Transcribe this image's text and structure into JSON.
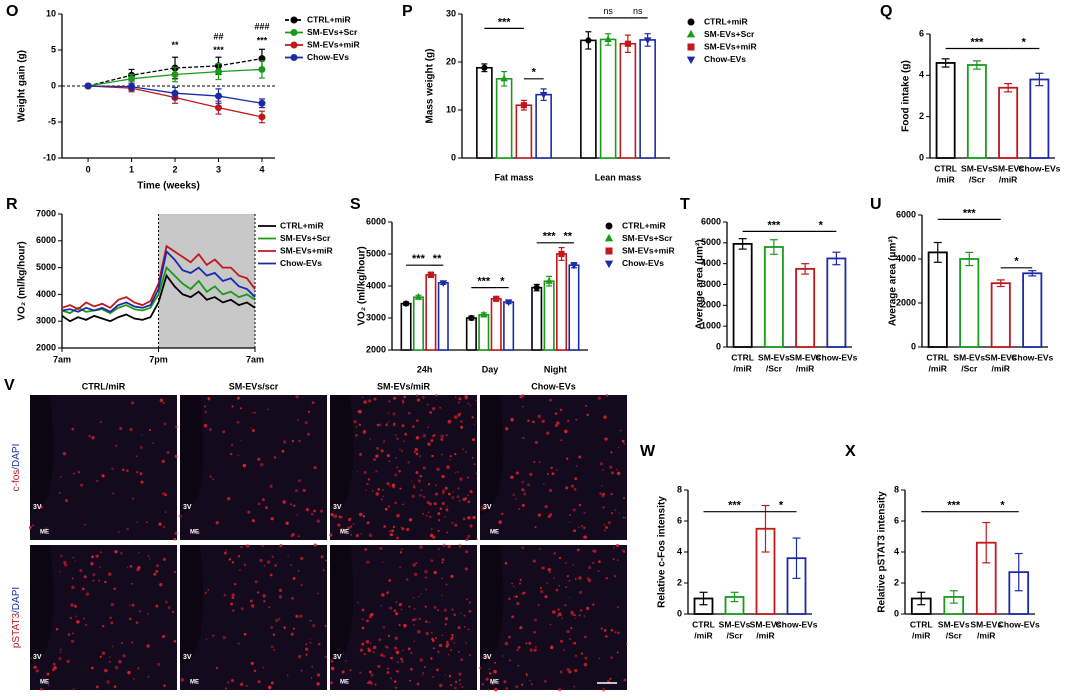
{
  "chart_data": [
    {
      "panel": "O",
      "type": "line",
      "x_label": "Time (weeks)",
      "y_label": "Weight gain (g)",
      "x": [
        0,
        1,
        2,
        3,
        4
      ],
      "xlim": [
        -0.6,
        4.3
      ],
      "xticks": [
        0,
        1,
        2,
        3,
        4
      ],
      "ylim": [
        -10,
        10
      ],
      "yticks": [
        -10,
        -5,
        0,
        5,
        10
      ],
      "zero_line": true,
      "series": [
        {
          "name": "CTRL+miR",
          "color": "#000000",
          "marker": "circle",
          "dashed": true,
          "values": [
            0,
            1.5,
            2.5,
            2.8,
            3.8
          ],
          "errors": [
            0,
            0.8,
            1.5,
            1.2,
            1.3
          ]
        },
        {
          "name": "SM-EVs+Scr",
          "color": "#1a9a1a",
          "marker": "circle",
          "values": [
            0,
            1.0,
            1.6,
            2.0,
            2.3
          ],
          "errors": [
            0,
            0.6,
            1.0,
            1.1,
            1.2
          ]
        },
        {
          "name": "SM-EVs+miR",
          "color": "#c0181c",
          "marker": "circle",
          "values": [
            0,
            -0.3,
            -1.6,
            -3.0,
            -4.3
          ],
          "errors": [
            0,
            0.5,
            0.8,
            0.9,
            0.8
          ]
        },
        {
          "name": "Chow-EVs",
          "color": "#1c2aa8",
          "marker": "circle",
          "values": [
            0,
            -0.1,
            -1.0,
            -1.4,
            -2.4
          ],
          "errors": [
            0,
            0.5,
            0.8,
            1.0,
            0.6
          ]
        }
      ],
      "annotations": [
        "**",
        "##",
        "***",
        "###",
        "***"
      ]
    },
    {
      "panel": "P",
      "type": "grouped_bar",
      "y_label": "Mass weight (g)",
      "categories": [
        "Fat mass",
        "Lean mass"
      ],
      "ylim": [
        0,
        30
      ],
      "yticks": [
        0,
        10,
        20,
        30
      ],
      "series": [
        {
          "name": "CTRL+miR",
          "color": "#000000",
          "marker": "circle",
          "values": [
            18.8,
            24.5
          ],
          "errors": [
            0.8,
            1.8
          ]
        },
        {
          "name": "SM-EVs+Scr",
          "color": "#1a9a1a",
          "marker": "triangle",
          "values": [
            16.5,
            24.7
          ],
          "errors": [
            1.5,
            1.2
          ]
        },
        {
          "name": "SM-EVs+miR",
          "color": "#c0181c",
          "marker": "square",
          "values": [
            11.0,
            23.8
          ],
          "errors": [
            1.0,
            1.8
          ]
        },
        {
          "name": "Chow-EVs",
          "color": "#1c2aa8",
          "marker": "invtriangle",
          "values": [
            13.2,
            24.6
          ],
          "errors": [
            1.2,
            1.3
          ]
        }
      ],
      "annotations": [
        "***",
        "*",
        "ns",
        "ns"
      ]
    },
    {
      "panel": "Q",
      "type": "bar",
      "y_label": "Food intake (g)",
      "categories": [
        [
          "CTRL",
          "/miR"
        ],
        [
          "SM-EVs",
          "/Scr"
        ],
        [
          "SM-EVs",
          "/miR"
        ],
        [
          "Chow-EVs"
        ]
      ],
      "colors": [
        "#000000",
        "#1a9a1a",
        "#c0181c",
        "#1c2aa8"
      ],
      "values": [
        4.6,
        4.5,
        3.4,
        3.8
      ],
      "errors": [
        0.2,
        0.2,
        0.2,
        0.3
      ],
      "ylim": [
        0,
        6
      ],
      "yticks": [
        0,
        2,
        4,
        6
      ],
      "annotations": [
        "***",
        "*"
      ]
    },
    {
      "panel": "R",
      "type": "line",
      "y_label": "VO₂ (ml/kg/hour)",
      "x": [
        0,
        1,
        2,
        3,
        4,
        5,
        6,
        7,
        8,
        9,
        10,
        11,
        12,
        13,
        14,
        15,
        16,
        17,
        18,
        19,
        20,
        21,
        22,
        23,
        24
      ],
      "xlim": [
        0,
        24
      ],
      "xticks": [
        {
          "value": 0,
          "label": "7am"
        },
        {
          "value": 12,
          "label": "7pm"
        },
        {
          "value": 24,
          "label": "7am"
        }
      ],
      "ylim": [
        2000,
        7000
      ],
      "yticks": [
        2000,
        3000,
        4000,
        5000,
        6000,
        7000
      ],
      "shade": [
        12,
        24
      ],
      "series": [
        {
          "name": "CTRL+miR",
          "color": "#000000",
          "values": [
            3200,
            3000,
            3150,
            3050,
            3200,
            3100,
            3000,
            3150,
            3250,
            3100,
            3050,
            3150,
            3700,
            4700,
            4300,
            4000,
            3900,
            4100,
            3800,
            3900,
            3700,
            3800,
            3600,
            3700,
            3500
          ]
        },
        {
          "name": "SM-EVs+Scr",
          "color": "#1a9a1a",
          "values": [
            3400,
            3300,
            3500,
            3350,
            3400,
            3450,
            3300,
            3500,
            3600,
            3450,
            3400,
            3500,
            4000,
            5000,
            4700,
            4400,
            4200,
            4500,
            4100,
            4300,
            4000,
            4100,
            3900,
            4000,
            3800
          ]
        },
        {
          "name": "SM-EVs+miR",
          "color": "#c0181c",
          "values": [
            3500,
            3600,
            3450,
            3700,
            3550,
            3650,
            3500,
            3800,
            3900,
            3700,
            3600,
            3750,
            4400,
            5800,
            5600,
            5400,
            5200,
            5500,
            5100,
            5300,
            5000,
            5000,
            4700,
            4600,
            4200
          ]
        },
        {
          "name": "Chow-EVs",
          "color": "#1c2aa8",
          "values": [
            3400,
            3450,
            3350,
            3500,
            3400,
            3500,
            3350,
            3600,
            3700,
            3550,
            3500,
            3600,
            4200,
            5600,
            5300,
            4900,
            4800,
            5000,
            4700,
            4800,
            4500,
            4600,
            4300,
            4200,
            3900
          ]
        }
      ]
    },
    {
      "panel": "S",
      "type": "grouped_bar",
      "y_label": "VO₂ (ml/kg/hour)",
      "categories": [
        "24h",
        "Day",
        "Night"
      ],
      "ylim": [
        2000,
        6000
      ],
      "yticks": [
        2000,
        3000,
        4000,
        5000,
        6000
      ],
      "series": [
        {
          "name": "CTRL+miR",
          "color": "#000000",
          "marker": "circle",
          "values": [
            3450,
            3000,
            3950
          ],
          "errors": [
            50,
            60,
            100
          ]
        },
        {
          "name": "SM-EVs+Scr",
          "color": "#1a9a1a",
          "marker": "triangle",
          "values": [
            3650,
            3100,
            4150
          ],
          "errors": [
            60,
            60,
            150
          ]
        },
        {
          "name": "SM-EVs+miR",
          "color": "#c0181c",
          "marker": "square",
          "values": [
            4350,
            3600,
            5000
          ],
          "errors": [
            80,
            60,
            200
          ]
        },
        {
          "name": "Chow-EVs",
          "color": "#1c2aa8",
          "marker": "invtriangle",
          "values": [
            4100,
            3500,
            4650
          ],
          "errors": [
            50,
            50,
            80
          ]
        }
      ],
      "annotations": [
        "***",
        "**",
        "***",
        "*",
        "***",
        "**"
      ]
    },
    {
      "panel": "T",
      "type": "bar",
      "y_label": "Average area (μm²)",
      "categories": [
        [
          "CTRL",
          "/miR"
        ],
        [
          "SM-EVs",
          "/Scr"
        ],
        [
          "SM-EVs",
          "/miR"
        ],
        [
          "Chow-EVs"
        ]
      ],
      "colors": [
        "#000000",
        "#1a9a1a",
        "#c0181c",
        "#1c2aa8"
      ],
      "values": [
        4950,
        4800,
        3750,
        4250
      ],
      "errors": [
        250,
        350,
        250,
        300
      ],
      "ylim": [
        0,
        6000
      ],
      "yticks": [
        0,
        1000,
        2000,
        3000,
        4000,
        5000,
        6000
      ],
      "annotations": [
        "***",
        "*"
      ]
    },
    {
      "panel": "U",
      "type": "bar",
      "y_label": "Average area (μm²)",
      "categories": [
        [
          "CTRL",
          "/miR"
        ],
        [
          "SM-EVs",
          "/Scr"
        ],
        [
          "SM-EVs",
          "/miR"
        ],
        [
          "Chow-EVs"
        ]
      ],
      "colors": [
        "#000000",
        "#1a9a1a",
        "#c0181c",
        "#1c2aa8"
      ],
      "values": [
        4300,
        4000,
        2900,
        3350
      ],
      "errors": [
        450,
        300,
        150,
        120
      ],
      "ylim": [
        0,
        6000
      ],
      "yticks": [
        0,
        2000,
        4000,
        6000
      ],
      "annotations": [
        "***",
        "*"
      ]
    },
    {
      "panel": "W",
      "type": "bar",
      "y_label": "Relative c-Fos intensity",
      "categories": [
        [
          "CTRL",
          "/miR"
        ],
        [
          "SM-EVs",
          "/Scr"
        ],
        [
          "SM-EVs",
          "/miR"
        ],
        [
          "Chow-EVs"
        ]
      ],
      "colors": [
        "#000000",
        "#1a9a1a",
        "#c0181c",
        "#1c2aa8"
      ],
      "values": [
        1.0,
        1.1,
        5.5,
        3.6
      ],
      "errors": [
        0.4,
        0.3,
        1.5,
        1.3
      ],
      "ylim": [
        0,
        8
      ],
      "yticks": [
        0,
        2,
        4,
        6,
        8
      ],
      "annotations": [
        "***",
        "*"
      ]
    },
    {
      "panel": "X",
      "type": "bar",
      "y_label": "Relative pSTAT3 intensity",
      "categories": [
        [
          "CTRL",
          "/miR"
        ],
        [
          "SM-EVs",
          "/Scr"
        ],
        [
          "SM-EVs",
          "/miR"
        ],
        [
          "Chow-EVs"
        ]
      ],
      "colors": [
        "#000000",
        "#1a9a1a",
        "#c0181c",
        "#1c2aa8"
      ],
      "values": [
        1.0,
        1.1,
        4.6,
        2.7
      ],
      "errors": [
        0.4,
        0.4,
        1.3,
        1.2
      ],
      "ylim": [
        0,
        8
      ],
      "yticks": [
        0,
        2,
        4,
        6,
        8
      ],
      "annotations": [
        "***",
        "*"
      ]
    }
  ],
  "image_panel": {
    "panel": "V",
    "columns": [
      "CTRL/miR",
      "SM-EVs/scr",
      "SM-EVs/miR",
      "Chow-EVs"
    ],
    "rows": [
      {
        "stain": "c-fos",
        "counterstain": "/DAPI"
      },
      {
        "stain": "pSTAT3",
        "counterstain": "/DAPI"
      }
    ],
    "region_labels": [
      "3V",
      "ME"
    ]
  }
}
